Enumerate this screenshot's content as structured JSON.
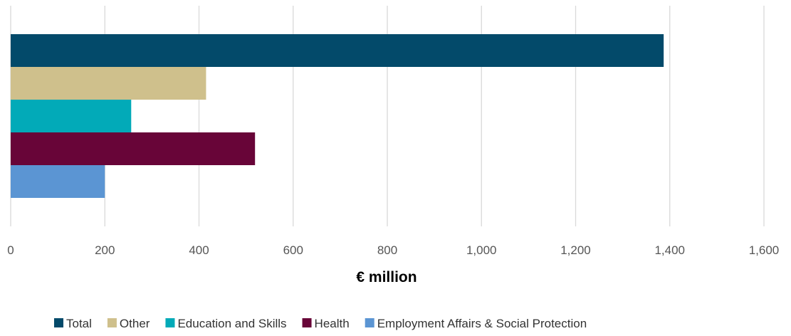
{
  "chart_data": {
    "type": "bar",
    "orientation": "horizontal",
    "categories": [
      ""
    ],
    "series": [
      {
        "name": "Total",
        "values": [
          1387
        ],
        "color": "#034a6a"
      },
      {
        "name": "Other",
        "values": [
          415
        ],
        "color": "#cfc08c"
      },
      {
        "name": "Education and Skills",
        "values": [
          256
        ],
        "color": "#02aab8"
      },
      {
        "name": "Health",
        "values": [
          519
        ],
        "color": "#680538"
      },
      {
        "name": "Employment Affairs & Social Protection",
        "values": [
          200
        ],
        "color": "#5b95d3"
      }
    ],
    "xlabel": "€ million",
    "xlim": [
      0,
      1600
    ],
    "x_ticks": [
      "0",
      "200",
      "400",
      "600",
      "800",
      "1,000",
      "1,200",
      "1,400",
      "1,600"
    ],
    "x_tick_values": [
      0,
      200,
      400,
      600,
      800,
      1000,
      1200,
      1400,
      1600
    ],
    "grid": true,
    "legend_position": "bottom"
  }
}
